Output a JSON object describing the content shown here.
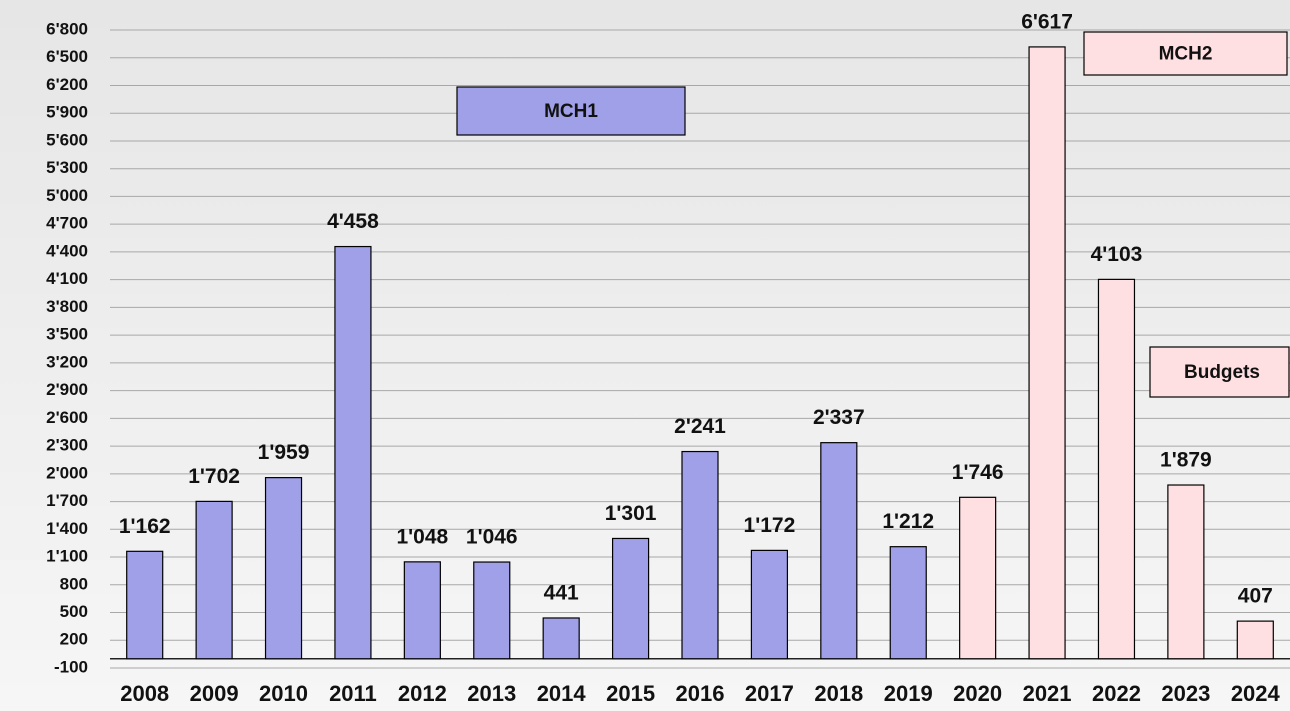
{
  "chart_data": {
    "type": "bar",
    "categories": [
      "2008",
      "2009",
      "2010",
      "2011",
      "2012",
      "2013",
      "2014",
      "2015",
      "2016",
      "2017",
      "2018",
      "2019",
      "2020",
      "2021",
      "2022",
      "2023",
      "2024"
    ],
    "series": [
      {
        "name": "MCH1",
        "color": "#a0a0e8",
        "values": [
          1162,
          1702,
          1959,
          4458,
          1048,
          1046,
          441,
          1301,
          2241,
          1172,
          2337,
          1212,
          null,
          null,
          null,
          null,
          null
        ],
        "value_labels": [
          "1'162",
          "1'702",
          "1'959",
          "4'458",
          "1'048",
          "1'046",
          "441",
          "1'301",
          "2'241",
          "1'172",
          "2'337",
          "1'212",
          null,
          null,
          null,
          null,
          null
        ]
      },
      {
        "name": "MCH2",
        "color": "#ffe0e2",
        "values": [
          null,
          null,
          null,
          null,
          null,
          null,
          null,
          null,
          null,
          null,
          null,
          null,
          1746,
          6617,
          4103,
          1879,
          407
        ],
        "value_labels": [
          null,
          null,
          null,
          null,
          null,
          null,
          null,
          null,
          null,
          null,
          null,
          null,
          "1'746",
          "6'617",
          "4'103",
          "1'879",
          "407"
        ]
      }
    ],
    "annotations": [
      "Budgets"
    ],
    "ylim": [
      -100,
      6800
    ],
    "yticks": [
      -100,
      200,
      500,
      800,
      {
        "value": 1100,
        "label": "1'100"
      },
      {
        "value": 1400,
        "label": "1'400"
      },
      {
        "value": 1700,
        "label": "1'700"
      },
      {
        "value": 2000,
        "label": "2'000"
      },
      {
        "value": 2300,
        "label": "2'300"
      },
      {
        "value": 2600,
        "label": "2'600"
      },
      {
        "value": 2900,
        "label": "2'900"
      },
      {
        "value": 3200,
        "label": "3'200"
      },
      {
        "value": 3500,
        "label": "3'500"
      },
      {
        "value": 3800,
        "label": "3'800"
      },
      {
        "value": 4100,
        "label": "4'100"
      },
      {
        "value": 4400,
        "label": "4'400"
      },
      {
        "value": 4700,
        "label": "4'700"
      },
      {
        "value": 5000,
        "label": "5'000"
      },
      {
        "value": 5300,
        "label": "5'300"
      },
      {
        "value": 5600,
        "label": "5'600"
      },
      {
        "value": 5900,
        "label": "5'900"
      },
      {
        "value": 6200,
        "label": "6'200"
      },
      {
        "value": 6500,
        "label": "6'500"
      },
      {
        "value": 6800,
        "label": "6'800"
      }
    ],
    "grid": true
  }
}
